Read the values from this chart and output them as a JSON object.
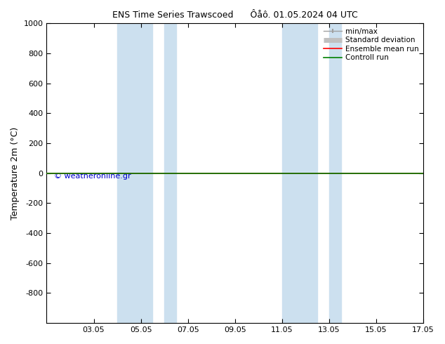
{
  "title_left": "ENS Time Series Trawscoed",
  "title_right": "Ôåô. 01.05.2024 04 UTC",
  "ylabel": "Temperature 2m (°C)",
  "ylim_top": -1000,
  "ylim_bottom": 1000,
  "yticks": [
    -800,
    -600,
    -400,
    -200,
    0,
    200,
    400,
    600,
    800,
    1000
  ],
  "xlim_start": 0,
  "xlim_end": 16,
  "xtick_positions": [
    2,
    4,
    6,
    8,
    10,
    12,
    14,
    16
  ],
  "xtick_labels": [
    "03.05",
    "05.05",
    "07.05",
    "09.05",
    "11.05",
    "13.05",
    "15.05",
    "17.05"
  ],
  "shaded_bands": [
    {
      "x_start": 3.0,
      "x_end": 4.5
    },
    {
      "x_start": 5.0,
      "x_end": 5.5
    },
    {
      "x_start": 10.0,
      "x_end": 11.5
    },
    {
      "x_start": 12.0,
      "x_end": 12.5
    }
  ],
  "shade_color": "#cce0ef",
  "control_run_y": 0,
  "background_color": "#ffffff",
  "watermark": "© weatheronline.gr",
  "watermark_color": "#0000cc",
  "legend_items": [
    {
      "label": "min/max",
      "color": "#a0a0a0",
      "lw": 1.0
    },
    {
      "label": "Standard deviation",
      "color": "#c0c0c0",
      "lw": 5
    },
    {
      "label": "Ensemble mean run",
      "color": "#ff0000",
      "lw": 1.2
    },
    {
      "label": "Controll run",
      "color": "#008000",
      "lw": 1.2
    }
  ]
}
